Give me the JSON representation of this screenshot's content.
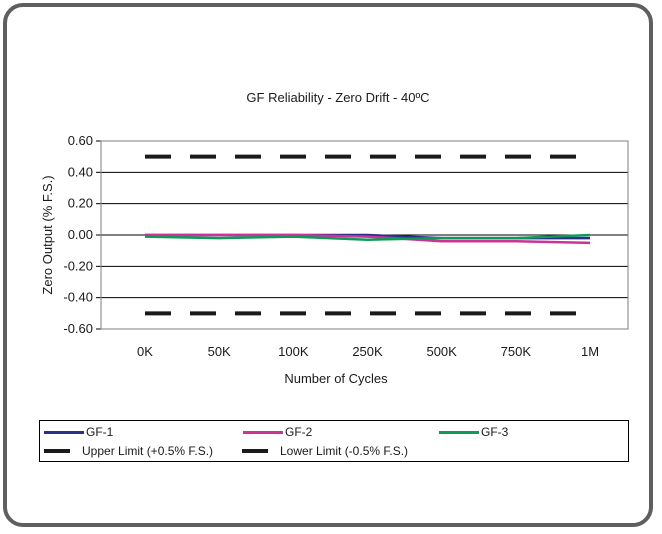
{
  "chart_data": {
    "type": "line",
    "title": "GF Reliability - Zero Drift - 40ºC",
    "xlabel": "Number of Cycles",
    "ylabel": "Zero Output (% F.S.)",
    "categories": [
      "0K",
      "50K",
      "100K",
      "250K",
      "500K",
      "750K",
      "1M"
    ],
    "ylim": [
      -0.6,
      0.6
    ],
    "yticks": [
      "0.60",
      "0.40",
      "0.20",
      "0.00",
      "-0.20",
      "-0.40",
      "-0.60"
    ],
    "ytick_values": [
      0.6,
      0.4,
      0.2,
      0.0,
      -0.2,
      -0.4,
      -0.6
    ],
    "grid": true,
    "legend_position": "bottom",
    "series": [
      {
        "name": "GF-1",
        "color": "#2b2f8c",
        "dashed": false,
        "values": [
          0.0,
          0.0,
          0.0,
          0.0,
          -0.02,
          -0.02,
          -0.02
        ]
      },
      {
        "name": "GF-2",
        "color": "#cc3399",
        "dashed": false,
        "values": [
          0.0,
          0.0,
          0.0,
          -0.01,
          -0.04,
          -0.04,
          -0.05
        ]
      },
      {
        "name": "GF-3",
        "color": "#109a57",
        "dashed": false,
        "values": [
          -0.01,
          -0.02,
          -0.01,
          -0.03,
          -0.02,
          -0.02,
          0.0
        ]
      },
      {
        "name": "Upper Limit (+0.5% F.S.)",
        "color": "#1a1a1a",
        "dashed": true,
        "values": [
          0.5,
          0.5,
          0.5,
          0.5,
          0.5,
          0.5,
          0.5
        ]
      },
      {
        "name": "Lower Limit (-0.5% F.S.)",
        "color": "#1a1a1a",
        "dashed": true,
        "values": [
          -0.5,
          -0.5,
          -0.5,
          -0.5,
          -0.5,
          -0.5,
          -0.5
        ]
      }
    ]
  }
}
